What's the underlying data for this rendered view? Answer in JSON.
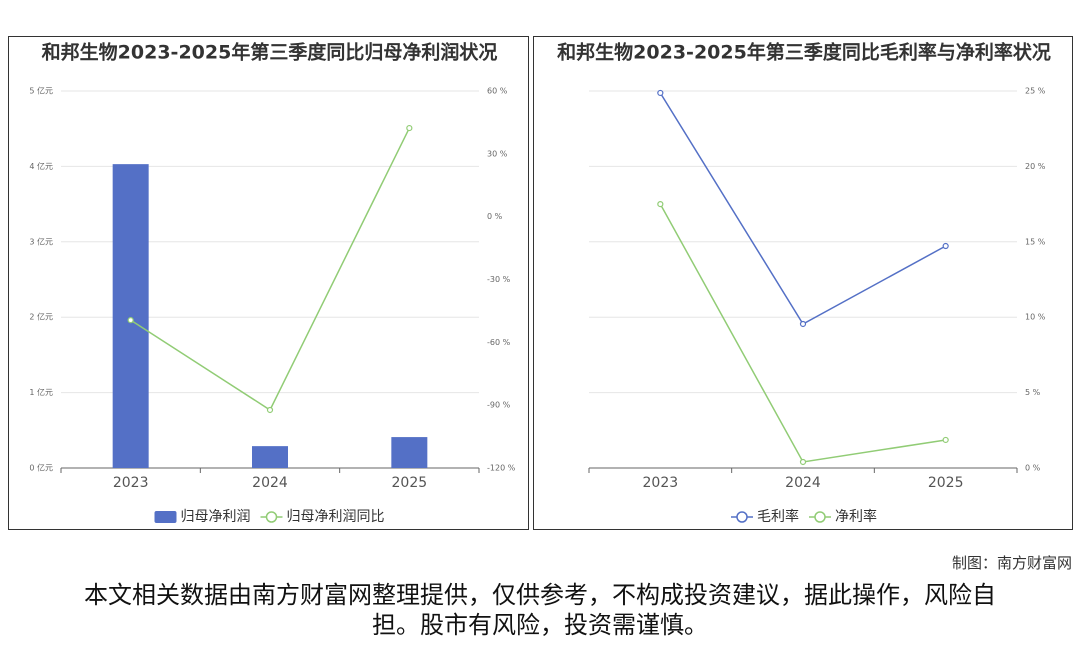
{
  "chart_data": [
    {
      "type": "bar",
      "title": "和邦生物2023-2025年第三季度同比归母净利润状况",
      "categories": [
        "2023",
        "2024",
        "2025"
      ],
      "series": [
        {
          "name": "归母净利润",
          "type": "bar",
          "color": "#5470c6",
          "values": [
            4.03,
            0.29,
            0.41
          ]
        },
        {
          "name": "归母净利润同比",
          "type": "line",
          "color": "#91cc75",
          "axis": "y2",
          "values": [
            -49.4,
            -92.3,
            42.3
          ]
        }
      ],
      "ylim": [
        0,
        5
      ],
      "yticks": [
        {
          "value": 0,
          "label": "0 亿元"
        },
        {
          "value": 1,
          "label": "1 亿元"
        },
        {
          "value": 2,
          "label": "2 亿元"
        },
        {
          "value": 3,
          "label": "3 亿元"
        },
        {
          "value": 4,
          "label": "4 亿元"
        },
        {
          "value": 5,
          "label": "5 亿元"
        }
      ],
      "y2lim": [
        -120,
        60
      ],
      "y2ticks": [
        {
          "value": -120,
          "label": "-120 %"
        },
        {
          "value": -90,
          "label": "-90 %"
        },
        {
          "value": -60,
          "label": "-60 %"
        },
        {
          "value": -30,
          "label": "-30 %"
        },
        {
          "value": 0,
          "label": "0 %"
        },
        {
          "value": 30,
          "label": "30 %"
        },
        {
          "value": 60,
          "label": "60 %"
        }
      ],
      "grid": true
    },
    {
      "type": "line",
      "title": "和邦生物2023-2025年第三季度同比毛利率与净利率状况",
      "categories": [
        "2023",
        "2024",
        "2025"
      ],
      "series": [
        {
          "name": "毛利率",
          "type": "line",
          "color": "#5470c6",
          "values": [
            24.87,
            9.55,
            14.72
          ]
        },
        {
          "name": "净利率",
          "type": "line",
          "color": "#91cc75",
          "values": [
            17.5,
            0.4,
            1.86
          ]
        }
      ],
      "ylim": [
        0,
        25
      ],
      "yticks": [
        {
          "value": 0,
          "label": "0 %"
        },
        {
          "value": 5,
          "label": "5 %"
        },
        {
          "value": 10,
          "label": "10 %"
        },
        {
          "value": 15,
          "label": "15 %"
        },
        {
          "value": 20,
          "label": "20 %"
        },
        {
          "value": 25,
          "label": "25 %"
        }
      ],
      "yaxis_side": "right",
      "grid": true
    }
  ],
  "footer": {
    "credit": "制图：南方财富网",
    "disclaimer": "本文相关数据由南方财富网整理提供，仅供参考，不构成投资建议，据此操作，风险自担。股市有风险，投资需谨慎。"
  }
}
